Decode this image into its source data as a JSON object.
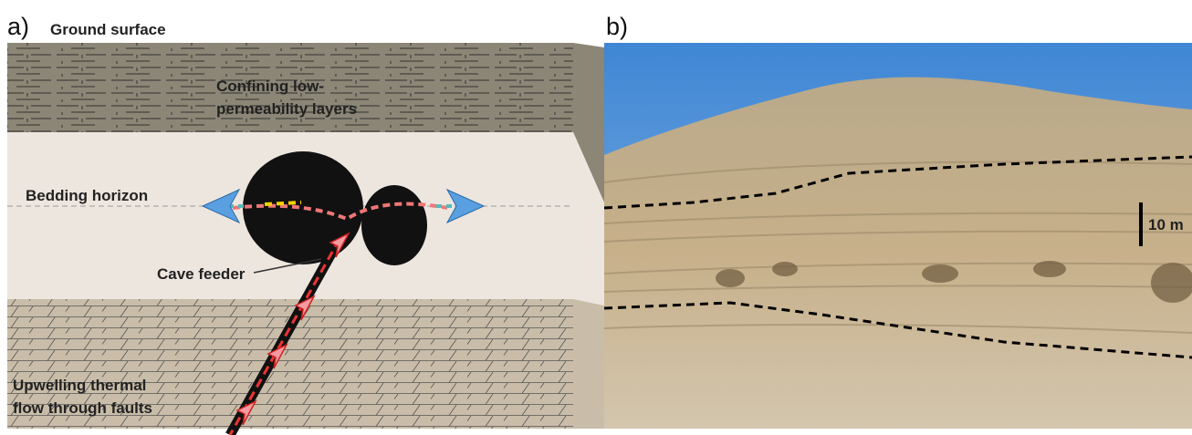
{
  "panel_a": {
    "label": "a)",
    "ground_surface": "Ground surface",
    "confining_layers": [
      "Confining low-",
      "permeability layers"
    ],
    "bedding_horizon": "Bedding horizon",
    "cave_feeder": "Cave feeder",
    "upwelling_flow": [
      "Upwelling thermal",
      "flow through faults"
    ]
  },
  "panel_b": {
    "label": "b)",
    "scale_bar": "10 m"
  }
}
